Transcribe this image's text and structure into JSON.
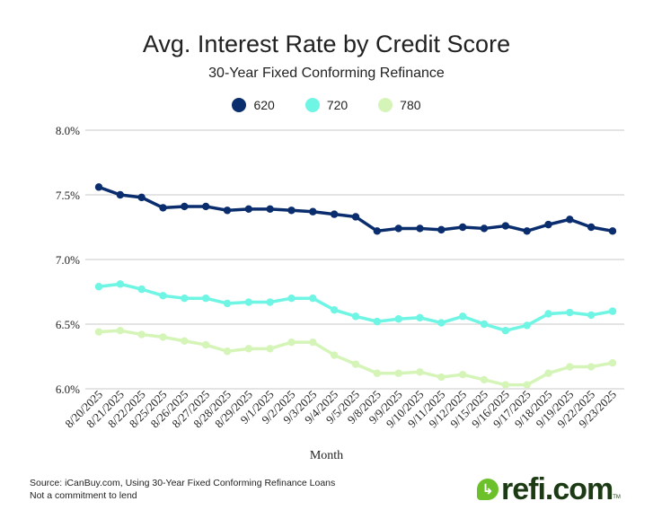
{
  "chart_data": {
    "type": "line",
    "title": "Avg. Interest Rate by Credit Score",
    "subtitle": "30-Year Fixed Conforming Refinance",
    "xlabel": "Month",
    "ylabel": "",
    "ylim": [
      6.0,
      8.0
    ],
    "yticks": [
      "6.0%",
      "6.5%",
      "7.0%",
      "7.5%",
      "8.0%"
    ],
    "ytick_values": [
      6.0,
      6.5,
      7.0,
      7.5,
      8.0
    ],
    "grid": true,
    "legend_position": "top-center",
    "categories": [
      "8/20/2025",
      "8/21/2025",
      "8/22/2025",
      "8/25/2025",
      "8/26/2025",
      "8/27/2025",
      "8/28/2025",
      "8/29/2025",
      "9/1/2025",
      "9/2/2025",
      "9/3/2025",
      "9/4/2025",
      "9/5/2025",
      "9/8/2025",
      "9/9/2025",
      "9/10/2025",
      "9/11/2025",
      "9/12/2025",
      "9/15/2025",
      "9/16/2025",
      "9/17/2025",
      "9/18/2025",
      "9/19/2025",
      "9/22/2025",
      "9/23/2025"
    ],
    "series": [
      {
        "name": "620",
        "color": "#0a2d6e",
        "values": [
          7.56,
          7.5,
          7.48,
          7.4,
          7.41,
          7.41,
          7.38,
          7.39,
          7.39,
          7.38,
          7.37,
          7.35,
          7.33,
          7.22,
          7.24,
          7.24,
          7.23,
          7.25,
          7.24,
          7.26,
          7.22,
          7.27,
          7.31,
          7.25,
          7.22
        ]
      },
      {
        "name": "720",
        "color": "#6ff5e3",
        "values": [
          6.79,
          6.81,
          6.77,
          6.72,
          6.7,
          6.7,
          6.66,
          6.67,
          6.67,
          6.7,
          6.7,
          6.61,
          6.56,
          6.52,
          6.54,
          6.55,
          6.51,
          6.56,
          6.5,
          6.45,
          6.49,
          6.58,
          6.59,
          6.57,
          6.6
        ]
      },
      {
        "name": "780",
        "color": "#d5f5b8",
        "values": [
          6.44,
          6.45,
          6.42,
          6.4,
          6.37,
          6.34,
          6.29,
          6.31,
          6.31,
          6.36,
          6.36,
          6.26,
          6.19,
          6.12,
          6.12,
          6.13,
          6.09,
          6.11,
          6.07,
          6.03,
          6.03,
          6.12,
          6.17,
          6.17,
          6.2
        ]
      }
    ]
  },
  "footer": {
    "source_line1": "Source: iCanBuy.com, Using 30-Year Fixed Conforming Refinance Loans",
    "source_line2": "Not a commitment to lend",
    "logo_text": "refi.com",
    "logo_tm": "TM"
  }
}
